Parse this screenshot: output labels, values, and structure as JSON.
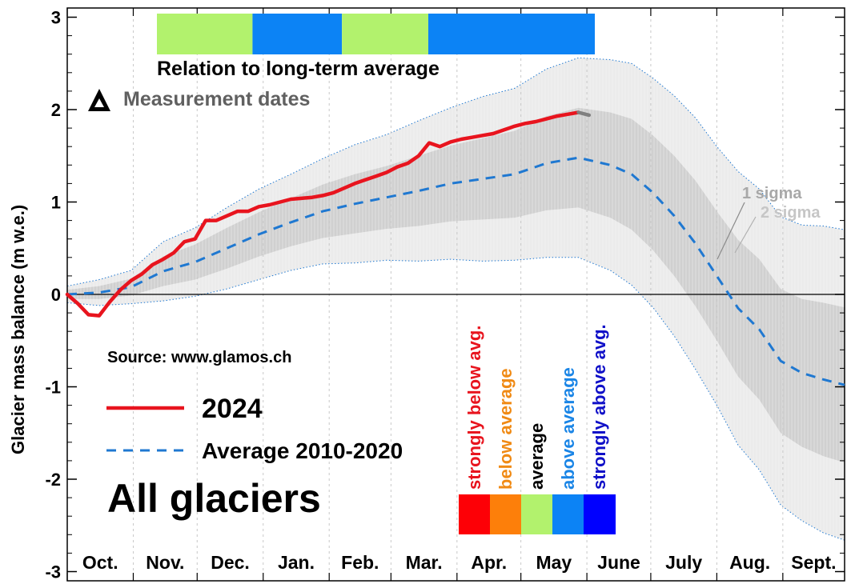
{
  "chart_data": {
    "type": "line",
    "ylabel": "Glacier mass balance (m w.e.)",
    "ylim": [
      -3,
      3
    ],
    "y_ticks": [
      -3,
      -2,
      -1,
      0,
      1,
      2,
      3
    ],
    "x_range_days": [
      0,
      365
    ],
    "months": [
      {
        "label": "Oct.",
        "start": 0
      },
      {
        "label": "Nov.",
        "start": 31
      },
      {
        "label": "Dec.",
        "start": 61
      },
      {
        "label": "Jan.",
        "start": 92
      },
      {
        "label": "Feb.",
        "start": 123
      },
      {
        "label": "Mar.",
        "start": 152
      },
      {
        "label": "Apr.",
        "start": 183
      },
      {
        "label": "May",
        "start": 213
      },
      {
        "label": "June",
        "start": 244
      },
      {
        "label": "July",
        "start": 274
      },
      {
        "label": "Aug.",
        "start": 305
      },
      {
        "label": "Sept.",
        "start": 336
      }
    ],
    "title": "All glaciers",
    "source_text": "Source: www.glamos.ch",
    "series": [
      {
        "name": "2024",
        "color": "#e8141e",
        "style": "solid",
        "x": [
          0,
          5,
          10,
          15,
          20,
          25,
          30,
          35,
          40,
          45,
          50,
          55,
          60,
          65,
          70,
          75,
          80,
          85,
          90,
          95,
          100,
          105,
          110,
          115,
          120,
          125,
          130,
          135,
          140,
          145,
          150,
          155,
          160,
          165,
          170,
          175,
          180,
          185,
          190,
          195,
          200,
          205,
          210,
          215,
          220,
          225,
          230,
          235,
          240
        ],
        "values": [
          0.0,
          -0.1,
          -0.22,
          -0.23,
          -0.08,
          0.05,
          0.15,
          0.22,
          0.32,
          0.38,
          0.45,
          0.57,
          0.6,
          0.8,
          0.8,
          0.85,
          0.9,
          0.9,
          0.95,
          0.97,
          1.0,
          1.03,
          1.04,
          1.05,
          1.07,
          1.1,
          1.15,
          1.2,
          1.24,
          1.28,
          1.32,
          1.38,
          1.42,
          1.5,
          1.64,
          1.6,
          1.65,
          1.68,
          1.7,
          1.72,
          1.74,
          1.78,
          1.82,
          1.85,
          1.87,
          1.9,
          1.93,
          1.95,
          1.97
        ],
        "extension_color": "#808080",
        "extension_x": [
          240,
          245
        ],
        "extension_values": [
          1.97,
          1.94
        ]
      },
      {
        "name": "Average 2010-2020",
        "color": "#1f78d1",
        "style": "dashed",
        "x": [
          0,
          15,
          30,
          45,
          60,
          75,
          90,
          105,
          120,
          135,
          150,
          165,
          180,
          195,
          210,
          225,
          240,
          255,
          265,
          275,
          285,
          295,
          305,
          315,
          325,
          335,
          345,
          355,
          365
        ],
        "values": [
          0.0,
          0.02,
          0.08,
          0.25,
          0.35,
          0.5,
          0.65,
          0.78,
          0.9,
          0.98,
          1.05,
          1.12,
          1.2,
          1.25,
          1.3,
          1.42,
          1.48,
          1.4,
          1.3,
          1.1,
          0.85,
          0.55,
          0.2,
          -0.15,
          -0.38,
          -0.72,
          -0.85,
          -0.92,
          -0.98
        ]
      }
    ],
    "bands": [
      {
        "name": "1 sigma",
        "color": "#d0d0d0",
        "x": [
          0,
          15,
          30,
          45,
          60,
          75,
          90,
          105,
          120,
          135,
          150,
          165,
          180,
          195,
          210,
          225,
          240,
          255,
          265,
          275,
          285,
          295,
          305,
          315,
          325,
          335,
          345,
          355,
          365
        ],
        "lower": [
          -0.05,
          -0.05,
          -0.01,
          0.09,
          0.16,
          0.28,
          0.41,
          0.52,
          0.61,
          0.66,
          0.71,
          0.74,
          0.79,
          0.81,
          0.83,
          0.91,
          0.94,
          0.83,
          0.7,
          0.48,
          0.2,
          -0.13,
          -0.5,
          -0.89,
          -1.14,
          -1.5,
          -1.65,
          -1.75,
          -1.82
        ],
        "upper": [
          0.05,
          0.09,
          0.17,
          0.41,
          0.54,
          0.72,
          0.89,
          1.04,
          1.19,
          1.3,
          1.39,
          1.5,
          1.61,
          1.69,
          1.77,
          1.93,
          2.02,
          1.97,
          1.9,
          1.72,
          1.5,
          1.23,
          0.9,
          0.59,
          0.38,
          0.06,
          -0.05,
          -0.09,
          -0.14
        ]
      },
      {
        "name": "2 sigma",
        "color": "#ebebeb",
        "x": [
          0,
          15,
          30,
          45,
          60,
          75,
          90,
          105,
          120,
          135,
          150,
          165,
          180,
          195,
          210,
          225,
          240,
          255,
          265,
          275,
          285,
          295,
          305,
          315,
          325,
          335,
          345,
          355,
          365
        ],
        "lower": [
          -0.09,
          -0.12,
          -0.1,
          -0.07,
          -0.02,
          0.06,
          0.16,
          0.26,
          0.33,
          0.34,
          0.37,
          0.36,
          0.38,
          0.36,
          0.37,
          0.4,
          0.4,
          0.26,
          0.1,
          -0.14,
          -0.45,
          -0.81,
          -1.2,
          -1.63,
          -1.9,
          -2.28,
          -2.45,
          -2.58,
          -2.66
        ],
        "upper": [
          0.09,
          0.16,
          0.26,
          0.57,
          0.72,
          0.94,
          1.14,
          1.3,
          1.47,
          1.62,
          1.73,
          1.88,
          2.02,
          2.14,
          2.23,
          2.44,
          2.56,
          2.54,
          2.5,
          2.34,
          2.15,
          1.91,
          1.6,
          1.33,
          1.14,
          0.84,
          0.75,
          0.74,
          0.7
        ]
      }
    ],
    "relation_bar": {
      "label": "Relation to long-term average",
      "segments": [
        {
          "start": 0,
          "end": 31,
          "color": "#b2f26d"
        },
        {
          "start": 31,
          "end": 60,
          "color": "#0c83f5"
        },
        {
          "start": 60,
          "end": 88,
          "color": "#b2f26d"
        },
        {
          "start": 88,
          "end": 142,
          "color": "#0c83f5"
        }
      ]
    },
    "measurement_dates_label": "Measurement dates",
    "sigma_labels": [
      "1 sigma",
      "2 sigma"
    ],
    "category_legend": [
      {
        "label": "strongly below avg.",
        "color": "#fd0006"
      },
      {
        "label": "below average",
        "color": "#fd7f0a"
      },
      {
        "label": "average",
        "color": "#b2f26d"
      },
      {
        "label": "above average",
        "color": "#0c83f5"
      },
      {
        "label": "strongly above avg.",
        "color": "#0000ff"
      }
    ],
    "category_text_colors": [
      "#e8141e",
      "#f08a14",
      "#000000",
      "#1a85e6",
      "#1010c8"
    ]
  }
}
